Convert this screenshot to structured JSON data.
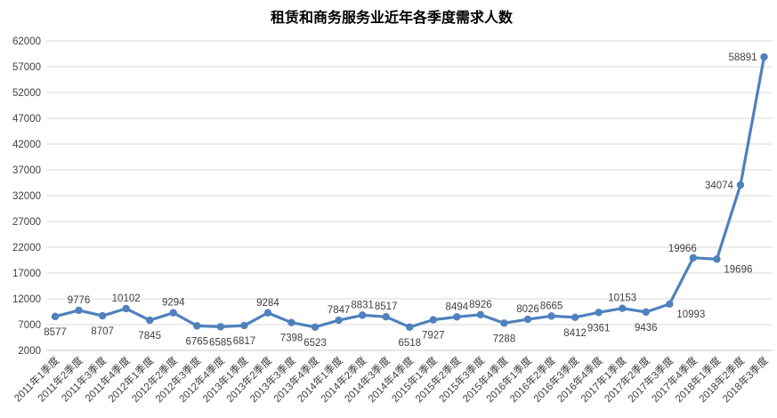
{
  "chart_data": {
    "type": "line",
    "title": "租赁和商务服务业近年各季度需求人数",
    "xlabel": "",
    "ylabel": "",
    "grid": true,
    "legend": false,
    "ylim": [
      2000,
      62000
    ],
    "y_ticks": [
      2000,
      7000,
      12000,
      17000,
      22000,
      27000,
      32000,
      37000,
      42000,
      47000,
      52000,
      57000,
      62000
    ],
    "categories": [
      "2011年1季度",
      "2011年2季度",
      "2011年3季度",
      "2011年4季度",
      "2012年1季度",
      "2012年2季度",
      "2012年3季度",
      "2012年4季度",
      "2013年1季度",
      "2013年2季度",
      "2013年3季度",
      "2013年4季度",
      "2014年1季度",
      "2014年2季度",
      "2014年3季度",
      "2014年4季度",
      "2015年1季度",
      "2015年2季度",
      "2015年3季度",
      "2015年4季度",
      "2016年1季度",
      "2016年2季度",
      "2016年3季度",
      "2016年4季度",
      "2017年1季度",
      "2017年2季度",
      "2017年3季度",
      "2017年4季度",
      "2018年1季度",
      "2018年2季度",
      "2018年3季度"
    ],
    "values": [
      8577,
      9776,
      8707,
      10102,
      7845,
      9294,
      6765,
      6585,
      6817,
      9284,
      7398,
      6523,
      7847,
      8831,
      8517,
      6518,
      7927,
      8494,
      8926,
      7288,
      8026,
      8665,
      8412,
      9361,
      10153,
      9436,
      10993,
      19966,
      19696,
      34074,
      58891
    ],
    "label_placements": [
      "below",
      "above",
      "below",
      "above",
      "below",
      "above",
      "below",
      "below",
      "below",
      "above",
      "below",
      "below",
      "above",
      "above",
      "above",
      "below",
      "below",
      "above",
      "above",
      "below",
      "above",
      "above",
      "below",
      "below",
      "above",
      "below",
      "below-right",
      "above-left",
      "below-right",
      "left",
      "left"
    ],
    "colors": {
      "line": "#4F81BD",
      "marker": "#4F81BD",
      "grid": "#D9D9D9",
      "axis": "#C9C9C9",
      "tick_label": "#404040",
      "data_label": "#404040",
      "title": "#000000",
      "background": "#FFFFFF"
    }
  }
}
